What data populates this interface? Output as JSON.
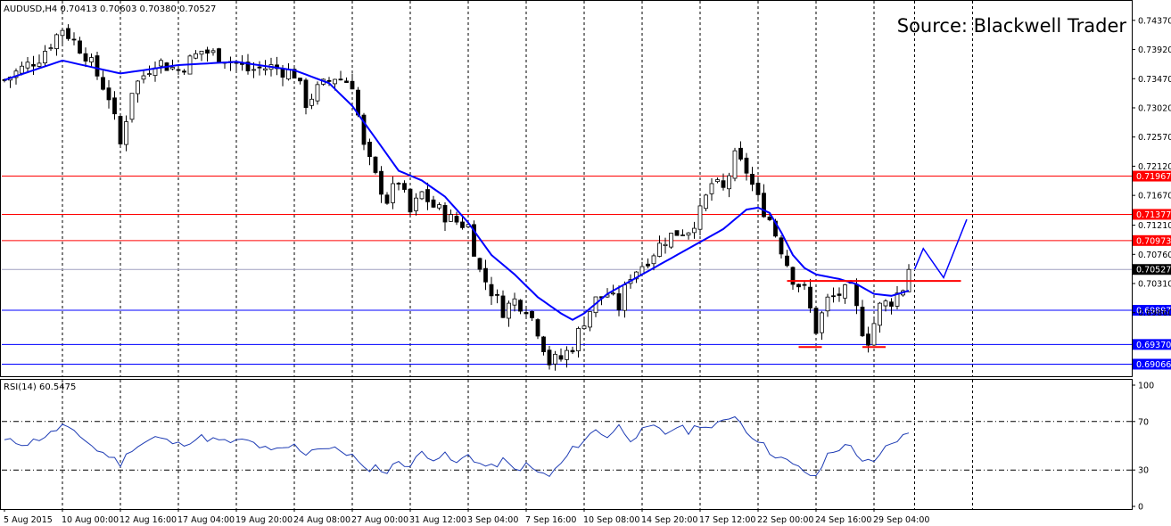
{
  "chart_data": [
    {
      "type": "candlestick",
      "title": "AUDUSD,H4  0.70413 0.70603 0.70380 0.70527",
      "source": "Source: Blackwell Trader",
      "x_tick_labels": [
        "5 Aug 2015",
        "10 Aug 00:00",
        "12 Aug 16:00",
        "17 Aug 04:00",
        "19 Aug 20:00",
        "24 Aug 08:00",
        "27 Aug 00:00",
        "31 Aug 12:00",
        "3 Sep 04:00",
        "7 Sep 16:00",
        "10 Sep 08:00",
        "14 Sep 20:00",
        "17 Sep 12:00",
        "22 Sep 00:00",
        "24 Sep 16:00",
        "29 Sep 04:00"
      ],
      "y_tick_labels": [
        "0.74370",
        "0.73920",
        "0.73470",
        "0.73020",
        "0.72570",
        "0.72120",
        "0.71670",
        "0.71210",
        "0.70760",
        "0.70310",
        "0.69860"
      ],
      "ylim": [
        0.6888,
        0.7467
      ],
      "price_label": "0.70527",
      "grid": "vertical dotted",
      "moving_average_color": "#0000ff",
      "close_path": [
        [
          0,
          0.7345
        ],
        [
          6,
          0.738
        ],
        [
          10,
          0.7425
        ],
        [
          14,
          0.7385
        ],
        [
          18,
          0.732
        ],
        [
          20,
          0.7245
        ],
        [
          22,
          0.733
        ],
        [
          26,
          0.7375
        ],
        [
          30,
          0.736
        ],
        [
          34,
          0.739
        ],
        [
          38,
          0.738
        ],
        [
          42,
          0.736
        ],
        [
          46,
          0.7365
        ],
        [
          50,
          0.7355
        ],
        [
          52,
          0.731
        ],
        [
          54,
          0.733
        ],
        [
          57,
          0.735
        ],
        [
          60,
          0.734
        ],
        [
          62,
          0.724
        ],
        [
          64,
          0.7195
        ],
        [
          66,
          0.716
        ],
        [
          68,
          0.719
        ],
        [
          70,
          0.714
        ],
        [
          72,
          0.717
        ],
        [
          74,
          0.715
        ],
        [
          77,
          0.713
        ],
        [
          80,
          0.712
        ],
        [
          82,
          0.705
        ],
        [
          84,
          0.702
        ],
        [
          86,
          0.699
        ],
        [
          88,
          0.7005
        ],
        [
          90,
          0.6995
        ],
        [
          92,
          0.696
        ],
        [
          94,
          0.691
        ],
        [
          96,
          0.6915
        ],
        [
          98,
          0.6935
        ],
        [
          100,
          0.6975
        ],
        [
          102,
          0.7005
        ],
        [
          104,
          0.7015
        ],
        [
          106,
          0.6995
        ],
        [
          108,
          0.7045
        ],
        [
          110,
          0.706
        ],
        [
          112,
          0.708
        ],
        [
          114,
          0.71
        ],
        [
          116,
          0.711
        ],
        [
          118,
          0.7115
        ],
        [
          120,
          0.714
        ],
        [
          122,
          0.7185
        ],
        [
          124,
          0.7175
        ],
        [
          126,
          0.7225
        ],
        [
          128,
          0.7205
        ],
        [
          130,
          0.716
        ],
        [
          132,
          0.713
        ],
        [
          134,
          0.7085
        ],
        [
          136,
          0.704
        ],
        [
          138,
          0.702
        ],
        [
          140,
          0.696
        ],
        [
          142,
          0.7005
        ],
        [
          144,
          0.7015
        ],
        [
          146,
          0.702
        ],
        [
          148,
          0.696
        ],
        [
          149,
          0.6945
        ],
        [
          151,
          0.6995
        ],
        [
          153,
          0.7005
        ],
        [
          155,
          0.7025
        ],
        [
          156,
          0.7053
        ]
      ],
      "moving_average": [
        [
          0,
          0.7345
        ],
        [
          10,
          0.7375
        ],
        [
          20,
          0.7355
        ],
        [
          30,
          0.7368
        ],
        [
          40,
          0.7373
        ],
        [
          50,
          0.736
        ],
        [
          56,
          0.734
        ],
        [
          60,
          0.7305
        ],
        [
          64,
          0.7255
        ],
        [
          68,
          0.7205
        ],
        [
          72,
          0.719
        ],
        [
          76,
          0.7165
        ],
        [
          80,
          0.7125
        ],
        [
          84,
          0.7075
        ],
        [
          88,
          0.7045
        ],
        [
          92,
          0.701
        ],
        [
          96,
          0.6985
        ],
        [
          98,
          0.6975
        ],
        [
          100,
          0.6985
        ],
        [
          104,
          0.7015
        ],
        [
          108,
          0.7035
        ],
        [
          112,
          0.7055
        ],
        [
          116,
          0.7075
        ],
        [
          120,
          0.7095
        ],
        [
          124,
          0.7115
        ],
        [
          126,
          0.713
        ],
        [
          128,
          0.7145
        ],
        [
          130,
          0.7148
        ],
        [
          132,
          0.714
        ],
        [
          134,
          0.711
        ],
        [
          136,
          0.7075
        ],
        [
          138,
          0.7055
        ],
        [
          140,
          0.7045
        ],
        [
          144,
          0.7038
        ],
        [
          147,
          0.703
        ],
        [
          150,
          0.7015
        ],
        [
          153,
          0.7012
        ],
        [
          156,
          0.702
        ]
      ],
      "horizontal_levels": [
        {
          "value": 0.69066,
          "label": "0.69066",
          "color": "#0000ff"
        },
        {
          "value": 0.6937,
          "label": "0.69370",
          "color": "#0000ff"
        },
        {
          "value": 0.69897,
          "label": "0.69897",
          "color": "#0000ff"
        },
        {
          "value": 0.70973,
          "label": "0.70973",
          "color": "#ff0000"
        },
        {
          "value": 0.71377,
          "label": "0.71377",
          "color": "#ff0000"
        },
        {
          "value": 0.71967,
          "label": "0.71967",
          "color": "#ff0000"
        }
      ],
      "neckline": {
        "value": 0.7035,
        "color": "#ff0000"
      },
      "bottoms": [
        0.6933,
        0.6933
      ],
      "projection": [
        0.7053,
        0.7085,
        0.704,
        0.713
      ]
    },
    {
      "type": "line",
      "title": "RSI(14) 60.5475",
      "y_tick_labels": [
        "100",
        "70",
        "30",
        "0"
      ],
      "ylim": [
        0,
        100
      ],
      "levels": [
        70,
        30
      ],
      "series": [
        [
          0,
          54
        ],
        [
          4,
          52
        ],
        [
          8,
          60
        ],
        [
          10,
          67
        ],
        [
          12,
          60
        ],
        [
          14,
          55
        ],
        [
          16,
          46
        ],
        [
          18,
          42
        ],
        [
          20,
          35
        ],
        [
          22,
          48
        ],
        [
          26,
          57
        ],
        [
          30,
          51
        ],
        [
          34,
          57
        ],
        [
          38,
          53
        ],
        [
          42,
          54
        ],
        [
          46,
          45
        ],
        [
          50,
          50
        ],
        [
          52,
          44
        ],
        [
          54,
          49
        ],
        [
          58,
          46
        ],
        [
          60,
          42
        ],
        [
          62,
          30
        ],
        [
          64,
          33
        ],
        [
          66,
          28
        ],
        [
          68,
          38
        ],
        [
          70,
          33
        ],
        [
          72,
          45
        ],
        [
          74,
          40
        ],
        [
          76,
          42
        ],
        [
          78,
          35
        ],
        [
          80,
          43
        ],
        [
          82,
          35
        ],
        [
          84,
          32
        ],
        [
          86,
          38
        ],
        [
          88,
          30
        ],
        [
          90,
          34
        ],
        [
          92,
          28
        ],
        [
          94,
          25
        ],
        [
          96,
          35
        ],
        [
          98,
          47
        ],
        [
          100,
          55
        ],
        [
          102,
          63
        ],
        [
          104,
          58
        ],
        [
          106,
          66
        ],
        [
          108,
          56
        ],
        [
          110,
          62
        ],
        [
          112,
          65
        ],
        [
          114,
          60
        ],
        [
          116,
          66
        ],
        [
          118,
          62
        ],
        [
          120,
          68
        ],
        [
          122,
          64
        ],
        [
          124,
          70
        ],
        [
          126,
          76
        ],
        [
          128,
          62
        ],
        [
          130,
          55
        ],
        [
          132,
          45
        ],
        [
          134,
          40
        ],
        [
          136,
          34
        ],
        [
          138,
          29
        ],
        [
          140,
          23
        ],
        [
          142,
          43
        ],
        [
          144,
          48
        ],
        [
          146,
          50
        ],
        [
          148,
          38
        ],
        [
          150,
          35
        ],
        [
          152,
          48
        ],
        [
          154,
          55
        ],
        [
          156,
          60.5
        ]
      ]
    }
  ]
}
